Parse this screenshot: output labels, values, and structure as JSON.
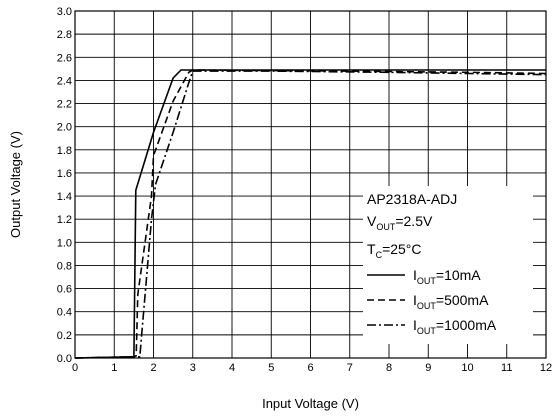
{
  "chart_data": {
    "type": "line",
    "title": "",
    "xlabel": "Input Voltage (V)",
    "ylabel": "Output Voltage (V)",
    "xlim": [
      0,
      12
    ],
    "ylim": [
      0,
      3.0
    ],
    "grid": true,
    "x_ticks": [
      "0",
      "1",
      "2",
      "3",
      "4",
      "5",
      "6",
      "7",
      "8",
      "9",
      "10",
      "11",
      "12"
    ],
    "y_ticks": [
      "0.0",
      "0.2",
      "0.4",
      "0.6",
      "0.8",
      "1.0",
      "1.2",
      "1.4",
      "1.6",
      "1.8",
      "2.0",
      "2.2",
      "2.4",
      "2.6",
      "2.8",
      "3.0"
    ],
    "annotations": {
      "device": "AP2318A-ADJ",
      "vout_main": "V",
      "vout_sub": "OUT",
      "vout_value": "=2.5V",
      "tc_main": "T",
      "tc_sub": "C",
      "tc_value": "=25°C"
    },
    "legend_position": "bottom-right",
    "series": [
      {
        "name_main": "I",
        "name_sub": "OUT",
        "name_value": "=10mA",
        "dash": "solid",
        "color": "#000000",
        "points": [
          [
            0,
            0.0
          ],
          [
            1.5,
            0.01
          ],
          [
            1.55,
            1.45
          ],
          [
            2.0,
            1.95
          ],
          [
            2.5,
            2.42
          ],
          [
            2.7,
            2.49
          ],
          [
            5,
            2.49
          ],
          [
            7,
            2.49
          ],
          [
            9,
            2.49
          ],
          [
            12,
            2.49
          ]
        ]
      },
      {
        "name_main": "I",
        "name_sub": "OUT",
        "name_value": "=500mA",
        "dash": "dashed",
        "color": "#000000",
        "points": [
          [
            0,
            0.0
          ],
          [
            1.5,
            0.01
          ],
          [
            1.56,
            0.02
          ],
          [
            1.6,
            0.55
          ],
          [
            1.95,
            1.4
          ],
          [
            2.0,
            1.75
          ],
          [
            2.5,
            2.22
          ],
          [
            2.9,
            2.47
          ],
          [
            3.0,
            2.49
          ],
          [
            7,
            2.48
          ],
          [
            10,
            2.47
          ],
          [
            12,
            2.46
          ]
        ]
      },
      {
        "name_main": "I",
        "name_sub": "OUT",
        "name_value": "=1000mA",
        "dash": "dashdot",
        "color": "#000000",
        "points": [
          [
            0,
            0.0
          ],
          [
            1.5,
            0.01
          ],
          [
            1.65,
            0.01
          ],
          [
            1.95,
            1.2
          ],
          [
            2.05,
            1.5
          ],
          [
            2.5,
            1.95
          ],
          [
            2.9,
            2.38
          ],
          [
            3.0,
            2.48
          ],
          [
            5,
            2.48
          ],
          [
            8,
            2.47
          ],
          [
            10,
            2.46
          ],
          [
            12,
            2.45
          ]
        ]
      }
    ]
  }
}
